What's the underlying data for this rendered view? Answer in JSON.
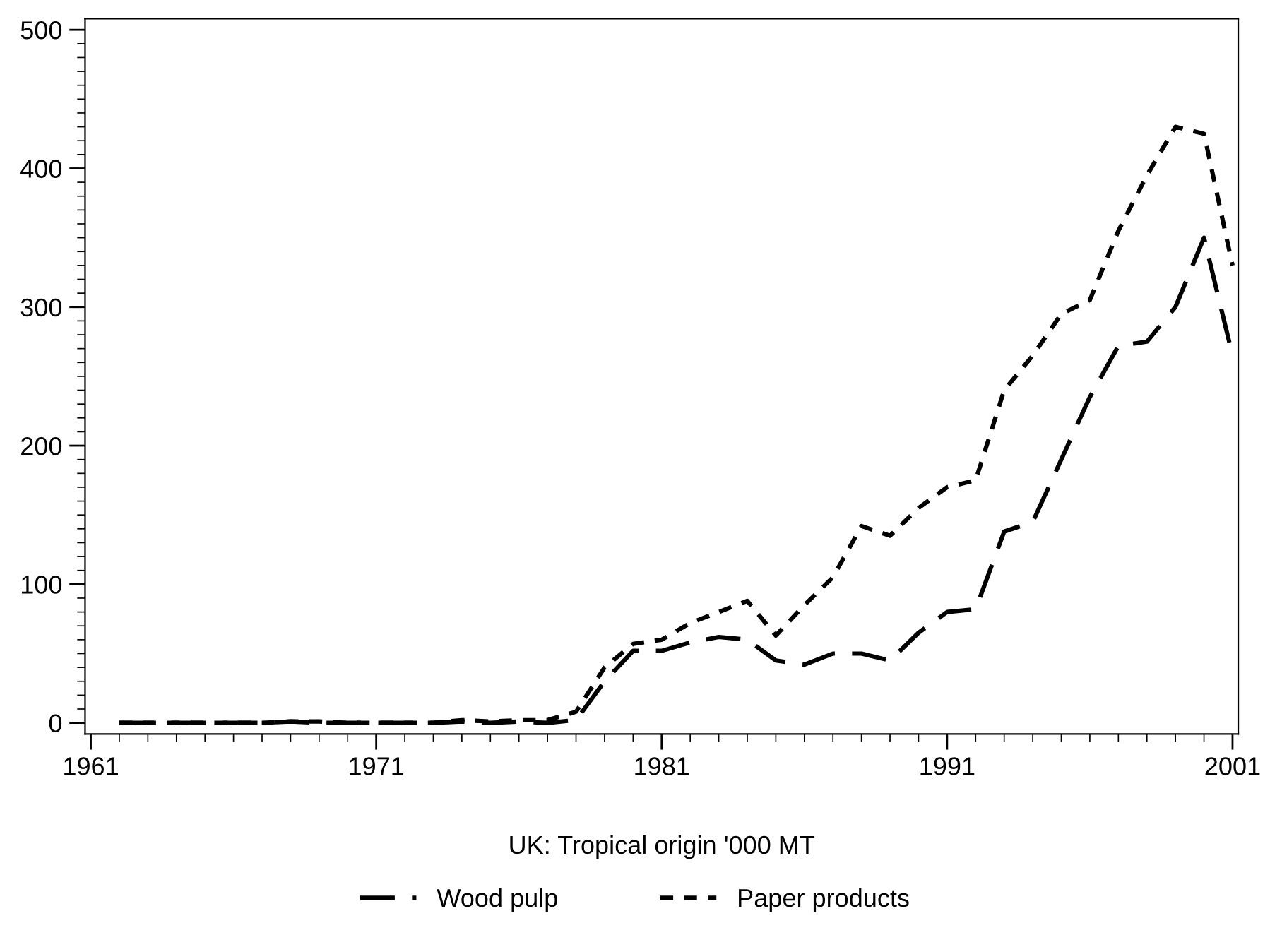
{
  "chart_data": {
    "type": "line",
    "xlabel": "UK: Tropical origin '000 MT",
    "x": [
      1962,
      1963,
      1964,
      1965,
      1966,
      1967,
      1968,
      1969,
      1970,
      1971,
      1972,
      1973,
      1974,
      1975,
      1976,
      1977,
      1978,
      1979,
      1980,
      1981,
      1982,
      1983,
      1984,
      1985,
      1986,
      1987,
      1988,
      1989,
      1990,
      1991,
      1992,
      1993,
      1994,
      1995,
      1996,
      1997,
      1998,
      1999,
      2000,
      2001
    ],
    "series": [
      {
        "name": "Wood pulp",
        "color": "#000000",
        "line_style": "dashed",
        "values": [
          0,
          0,
          0,
          0,
          0,
          0,
          1,
          0,
          0,
          0,
          0,
          0,
          1,
          0,
          1,
          0,
          2,
          30,
          52,
          52,
          58,
          62,
          60,
          45,
          42,
          50,
          50,
          45,
          65,
          80,
          82,
          138,
          145,
          190,
          235,
          272,
          275,
          300,
          350,
          265
        ]
      },
      {
        "name": "Paper products",
        "color": "#000000",
        "line_style": "dotted",
        "values": [
          0,
          0,
          0,
          0,
          0,
          0,
          1,
          1,
          0,
          0,
          0,
          0,
          2,
          1,
          2,
          2,
          8,
          40,
          57,
          60,
          72,
          80,
          88,
          63,
          85,
          105,
          142,
          135,
          155,
          170,
          175,
          240,
          265,
          295,
          305,
          355,
          395,
          430,
          425,
          330
        ]
      }
    ],
    "xlim": [
      1960.8,
      2001.2
    ],
    "xticks": [
      1961,
      1971,
      1981,
      1991,
      2001
    ],
    "ylim": [
      -8,
      508
    ],
    "yticks": [
      0,
      100,
      200,
      300,
      400,
      500
    ],
    "grid": false,
    "legend": "bottom",
    "marker": "none"
  }
}
